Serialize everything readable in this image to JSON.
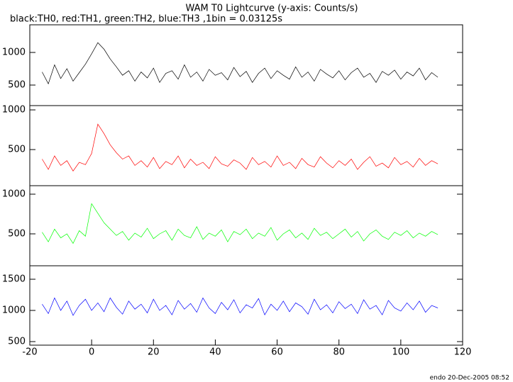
{
  "title": "WAM T0 Lightcurve (y-axis: Counts/s)",
  "subtitle": "black:TH0, red:TH1, green:TH2, blue:TH3 ,1bin = 0.03125s",
  "footer": "endo 20-Dec-2005 08:52",
  "chart_data": [
    {
      "type": "line",
      "xlim": [
        -20,
        120
      ],
      "ylim": [
        185,
        1424
      ],
      "yticks": [
        500,
        1000
      ],
      "x": [
        -16,
        -14,
        -12,
        -10,
        -8,
        -6,
        -4,
        -2,
        0,
        2,
        4,
        6,
        8,
        10,
        12,
        14,
        16,
        18,
        20,
        22,
        24,
        26,
        28,
        30,
        32,
        34,
        36,
        38,
        40,
        42,
        44,
        46,
        48,
        50,
        52,
        54,
        56,
        58,
        60,
        62,
        64,
        66,
        68,
        70,
        72,
        74,
        76,
        78,
        80,
        82,
        84,
        86,
        88,
        90,
        92,
        94,
        96,
        98,
        100,
        102,
        104,
        106,
        108,
        110,
        112
      ],
      "series": [
        {
          "color": "#000000",
          "values": [
            700,
            520,
            810,
            600,
            750,
            560,
            690,
            820,
            980,
            1150,
            1050,
            900,
            780,
            650,
            720,
            560,
            700,
            610,
            760,
            540,
            680,
            720,
            590,
            810,
            620,
            700,
            560,
            740,
            650,
            690,
            580,
            770,
            630,
            710,
            540,
            680,
            760,
            600,
            720,
            650,
            590,
            780,
            620,
            700,
            560,
            740,
            670,
            610,
            720,
            580,
            690,
            760,
            620,
            680,
            540,
            710,
            650,
            730,
            590,
            700,
            640,
            760,
            580,
            690,
            620
          ]
        }
      ]
    },
    {
      "type": "line",
      "xlim": [
        -20,
        120
      ],
      "ylim": [
        45,
        1054
      ],
      "yticks": [
        500,
        1000
      ],
      "x": [
        -16,
        -14,
        -12,
        -10,
        -8,
        -6,
        -4,
        -2,
        0,
        2,
        4,
        6,
        8,
        10,
        12,
        14,
        16,
        18,
        20,
        22,
        24,
        26,
        28,
        30,
        32,
        34,
        36,
        38,
        40,
        42,
        44,
        46,
        48,
        50,
        52,
        54,
        56,
        58,
        60,
        62,
        64,
        66,
        68,
        70,
        72,
        74,
        76,
        78,
        80,
        82,
        84,
        86,
        88,
        90,
        92,
        94,
        96,
        98,
        100,
        102,
        104,
        106,
        108,
        110,
        112
      ],
      "series": [
        {
          "color": "#ff0000",
          "values": [
            380,
            250,
            420,
            300,
            360,
            230,
            340,
            310,
            450,
            820,
            700,
            560,
            460,
            380,
            420,
            300,
            360,
            280,
            400,
            260,
            350,
            310,
            420,
            270,
            380,
            300,
            340,
            260,
            410,
            320,
            290,
            370,
            330,
            250,
            400,
            310,
            350,
            280,
            420,
            300,
            340,
            260,
            390,
            310,
            280,
            410,
            330,
            270,
            360,
            300,
            380,
            250,
            340,
            410,
            290,
            330,
            270,
            400,
            310,
            350,
            280,
            390,
            300,
            360,
            320
          ]
        }
      ]
    },
    {
      "type": "line",
      "xlim": [
        -20,
        120
      ],
      "ylim": [
        98,
        1107
      ],
      "yticks": [
        500,
        1000
      ],
      "x": [
        -16,
        -14,
        -12,
        -10,
        -8,
        -6,
        -4,
        -2,
        0,
        2,
        4,
        6,
        8,
        10,
        12,
        14,
        16,
        18,
        20,
        22,
        24,
        26,
        28,
        30,
        32,
        34,
        36,
        38,
        40,
        42,
        44,
        46,
        48,
        50,
        52,
        54,
        56,
        58,
        60,
        62,
        64,
        66,
        68,
        70,
        72,
        74,
        76,
        78,
        80,
        82,
        84,
        86,
        88,
        90,
        92,
        94,
        96,
        98,
        100,
        102,
        104,
        106,
        108,
        110,
        112
      ],
      "series": [
        {
          "color": "#00ff00",
          "values": [
            520,
            400,
            560,
            450,
            500,
            380,
            540,
            470,
            880,
            760,
            640,
            560,
            480,
            530,
            420,
            510,
            460,
            570,
            440,
            500,
            540,
            420,
            560,
            480,
            450,
            590,
            430,
            510,
            470,
            550,
            400,
            530,
            490,
            560,
            440,
            510,
            470,
            580,
            420,
            500,
            550,
            450,
            510,
            430,
            570,
            480,
            520,
            440,
            500,
            560,
            460,
            530,
            410,
            500,
            550,
            470,
            430,
            520,
            480,
            540,
            450,
            510,
            470,
            530,
            490
          ]
        }
      ]
    },
    {
      "type": "line",
      "xlim": [
        -20,
        120
      ],
      "ylim": [
        443,
        1716
      ],
      "yticks": [
        500,
        1000,
        1500
      ],
      "xticks": [
        -20,
        0,
        20,
        40,
        60,
        80,
        100,
        120
      ],
      "x": [
        -16,
        -14,
        -12,
        -10,
        -8,
        -6,
        -4,
        -2,
        0,
        2,
        4,
        6,
        8,
        10,
        12,
        14,
        16,
        18,
        20,
        22,
        24,
        26,
        28,
        30,
        32,
        34,
        36,
        38,
        40,
        42,
        44,
        46,
        48,
        50,
        52,
        54,
        56,
        58,
        60,
        62,
        64,
        66,
        68,
        70,
        72,
        74,
        76,
        78,
        80,
        82,
        84,
        86,
        88,
        90,
        92,
        94,
        96,
        98,
        100,
        102,
        104,
        106,
        108,
        110,
        112
      ],
      "series": [
        {
          "color": "#0000ff",
          "values": [
            1100,
            950,
            1200,
            1000,
            1150,
            920,
            1080,
            1180,
            1000,
            1120,
            980,
            1200,
            1050,
            940,
            1150,
            1020,
            1100,
            960,
            1180,
            1000,
            1080,
            930,
            1160,
            1020,
            1110,
            970,
            1200,
            1040,
            950,
            1130,
            1010,
            1170,
            960,
            1090,
            1040,
            1190,
            930,
            1100,
            1000,
            1150,
            980,
            1120,
            1060,
            940,
            1180,
            1010,
            1090,
            960,
            1140,
            1030,
            1100,
            950,
            1170,
            1020,
            1080,
            930,
            1160,
            1040,
            990,
            1120,
            1010,
            1150,
            970,
            1080,
            1040
          ]
        }
      ]
    }
  ]
}
